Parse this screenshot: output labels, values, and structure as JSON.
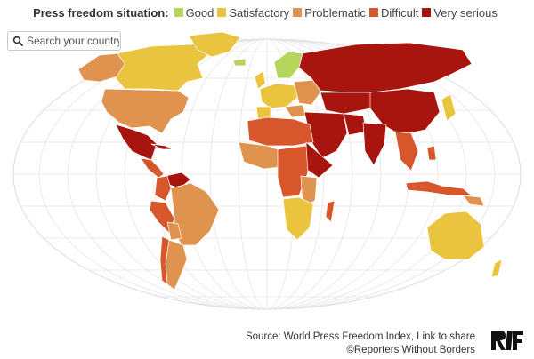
{
  "legend": {
    "title": "Press freedom situation:",
    "items": [
      {
        "label": "Good",
        "color": "#b6d55c"
      },
      {
        "label": "Satisfactory",
        "color": "#ebc43f"
      },
      {
        "label": "Problematic",
        "color": "#e0924f"
      },
      {
        "label": "Difficult",
        "color": "#d8562b"
      },
      {
        "label": "Very serious",
        "color": "#a8140e"
      }
    ]
  },
  "search": {
    "placeholder": "Search your country ...",
    "icon": "search-icon"
  },
  "map": {
    "ocean_color": "#ffffff",
    "graticule_color": "#e2e2e2",
    "border_color": "#ffffff"
  },
  "footer": {
    "source_prefix": "Source: World Press Freedom Index,",
    "source_link": "Link to share",
    "copyright": "©Reporters Without Borders"
  },
  "logo": {
    "text": "RSF"
  }
}
